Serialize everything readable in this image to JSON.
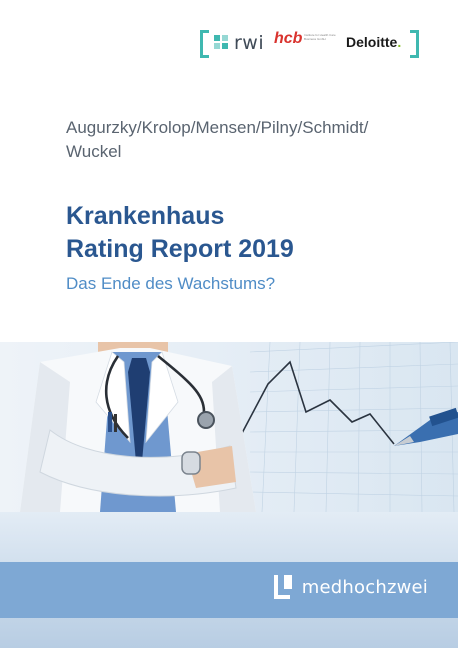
{
  "logos": {
    "rwi": "rwi",
    "hcb": "hcb",
    "hcb_sub": "Institute for Health Care Business GmbH",
    "deloitte": "Deloitte",
    "deloitte_dot": "."
  },
  "authors": {
    "line1": "Augurzky/Krolop/Mensen/Pilny/Schmidt/",
    "line2": "Wuckel"
  },
  "title": {
    "line1": "Krankenhaus",
    "line2": "Rating Report 2019"
  },
  "subtitle": "Das Ende des Wachstums?",
  "publisher": "medhochzwei",
  "colors": {
    "title": "#2a5790",
    "subtitle": "#4f8cc6",
    "authors": "#5a6470",
    "footer": "#7ea8d4",
    "rwi": "#3fb8b0",
    "hcb": "#d9332e",
    "deloitte_dot": "#86bc25"
  },
  "icons": [
    "rwi-logo-icon",
    "medhochzwei-logo-icon"
  ]
}
